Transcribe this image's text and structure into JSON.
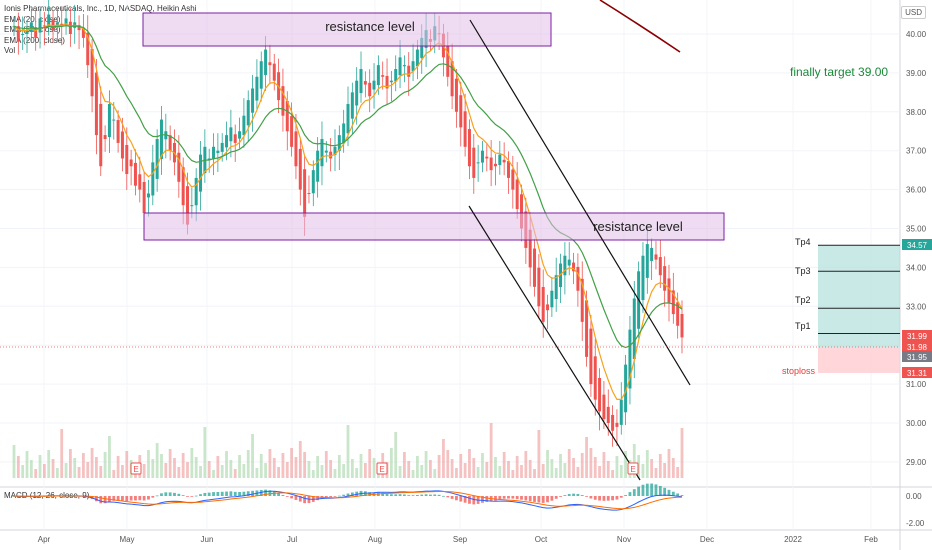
{
  "legend": {
    "title": "Ionis Pharmaceuticals, Inc., 1D, NASDAQ, Heikin Ashi",
    "ema20": "EMA (20, close)",
    "ema50": "EMA (50, close)",
    "ema200": "EMA (200, close)",
    "vol": "Vol",
    "macd": "MACD (12, 26, close, 9)"
  },
  "currency": "USD",
  "annotations": {
    "resistance_top": "resistance level",
    "resistance_mid": "resistance  level",
    "final_target": "finally  target  39.00",
    "stoploss": "stoploss",
    "tp1": "Tp1",
    "tp2": "Tp2",
    "tp3": "Tp3",
    "tp4": "Tp4",
    "earnings": "E"
  },
  "chart_data": {
    "type": "candlestick",
    "x_labels": [
      "Apr",
      "May",
      "Jun",
      "Jul",
      "Aug",
      "Sep",
      "Oct",
      "Nov",
      "Dec",
      "2022",
      "Feb"
    ],
    "y_ticks": [
      "40.00",
      "39.00",
      "38.00",
      "37.00",
      "36.00",
      "35.00",
      "34.00",
      "33.00",
      "32.00",
      "31.00",
      "30.00",
      "29.00"
    ],
    "macd_ticks": [
      "0.00",
      "-2.00"
    ],
    "price_labels": [
      {
        "text": "34.57",
        "color": "#26a69a"
      },
      {
        "text": "31.99",
        "color": "#ef5350"
      },
      {
        "text": "31.98",
        "color": "#ef5350"
      },
      {
        "text": "31.95",
        "color": "#787b86"
      },
      {
        "text": "31.31",
        "color": "#ef5350"
      }
    ],
    "targets": {
      "tp1": 32.3,
      "tp2": 32.95,
      "tp3": 33.9,
      "tp4": 34.57,
      "entry": 31.98,
      "stoploss": 31.31
    },
    "closes": [
      40.2,
      39.8,
      40.0,
      40.1,
      40.3,
      39.9,
      40.4,
      40.2,
      40.5,
      40.1,
      40.3,
      40.2,
      40.4,
      40.0,
      40.3,
      40.1,
      39.9,
      39.2,
      38.4,
      37.4,
      36.6,
      37.3,
      38.2,
      37.8,
      37.2,
      36.8,
      36.4,
      36.6,
      36.1,
      36.0,
      35.4,
      35.9,
      36.7,
      37.3,
      37.8,
      37.5,
      37.0,
      36.7,
      36.2,
      35.6,
      35.1,
      35.6,
      36.3,
      36.9,
      37.1,
      36.8,
      37.1,
      37.0,
      37.2,
      37.4,
      37.6,
      37.2,
      37.5,
      37.9,
      38.3,
      38.6,
      38.9,
      39.3,
      39.6,
      39.2,
      38.8,
      38.3,
      37.9,
      37.5,
      37.1,
      36.6,
      36.0,
      35.3,
      35.9,
      36.5,
      37.0,
      37.3,
      37.0,
      36.8,
      37.1,
      37.4,
      37.7,
      38.2,
      38.5,
      38.8,
      39.1,
      38.7,
      38.4,
      38.8,
      39.2,
      38.9,
      38.6,
      38.8,
      39.1,
      39.4,
      39.2,
      38.9,
      39.3,
      39.6,
      39.9,
      40.1,
      39.8,
      40.2,
      40.0,
      39.4,
      38.9,
      38.4,
      38.0,
      37.6,
      37.1,
      36.6,
      36.3,
      36.7,
      37.0,
      36.8,
      36.5,
      36.6,
      36.9,
      36.7,
      36.3,
      36.0,
      35.5,
      35.0,
      34.5,
      34.0,
      33.5,
      33.0,
      32.6,
      32.9,
      33.4,
      33.8,
      34.1,
      34.3,
      34.2,
      33.9,
      33.4,
      32.6,
      31.7,
      31.0,
      30.6,
      30.3,
      30.1,
      30.0,
      29.8,
      29.9,
      30.6,
      31.5,
      32.4,
      33.2,
      33.9,
      34.3,
      34.6,
      34.5,
      34.2,
      33.8,
      33.4,
      33.1,
      32.8,
      32.5,
      32.2
    ]
  }
}
